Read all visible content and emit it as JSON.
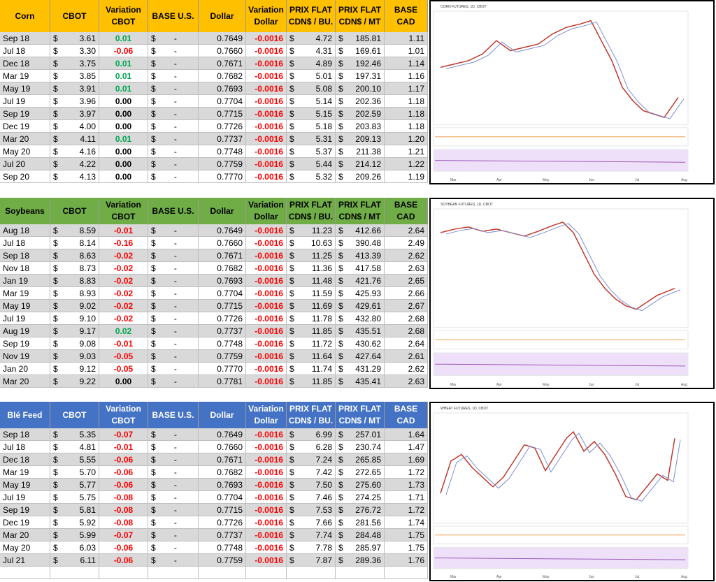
{
  "currency": "$",
  "dash": "-",
  "header": [
    [
      "CBOT"
    ],
    [
      "Variation",
      "CBOT"
    ],
    [
      "BASE U.S."
    ],
    [
      "Dollar"
    ],
    [
      "Variation",
      "Dollar"
    ],
    [
      "PRIX FLAT",
      "CDN$ / BU."
    ],
    [
      "PRIX FLAT",
      "CDN$ / MT"
    ],
    [
      "BASE CAD"
    ]
  ],
  "months": [
    "Mar",
    "Apr",
    "May",
    "Jun",
    "Jul",
    "Aug"
  ],
  "sections": [
    {
      "name": "Corn",
      "chart_title": "CORN FUTURES, 1D, CBOT",
      "rows": [
        [
          "Sep 18",
          "3.61",
          "0.01",
          "0.7649",
          "-0.0016",
          "4.72",
          "185.81",
          "1.11"
        ],
        [
          "Jul 18",
          "3.30",
          "-0.06",
          "0.7660",
          "-0.0016",
          "4.31",
          "169.61",
          "1.01"
        ],
        [
          "Dec 18",
          "3.75",
          "0.01",
          "0.7671",
          "-0.0016",
          "4.89",
          "192.46",
          "1.14"
        ],
        [
          "Mar 19",
          "3.85",
          "0.01",
          "0.7682",
          "-0.0016",
          "5.01",
          "197.31",
          "1.16"
        ],
        [
          "May 19",
          "3.91",
          "0.01",
          "0.7693",
          "-0.0016",
          "5.08",
          "200.10",
          "1.17"
        ],
        [
          "Jul 19",
          "3.96",
          "0.00",
          "0.7704",
          "-0.0016",
          "5.14",
          "202.36",
          "1.18"
        ],
        [
          "Sep 19",
          "3.97",
          "0.00",
          "0.7715",
          "-0.0016",
          "5.15",
          "202.59",
          "1.18"
        ],
        [
          "Dec 19",
          "4.00",
          "0.00",
          "0.7726",
          "-0.0016",
          "5.18",
          "203.83",
          "1.18"
        ],
        [
          "Mar 20",
          "4.11",
          "0.01",
          "0.7737",
          "-0.0016",
          "5.31",
          "209.13",
          "1.20"
        ],
        [
          "May 20",
          "4.16",
          "0.00",
          "0.7748",
          "-0.0016",
          "5.37",
          "211.38",
          "1.21"
        ],
        [
          "Jul 20",
          "4.22",
          "0.00",
          "0.7759",
          "-0.0016",
          "5.44",
          "214.12",
          "1.22"
        ],
        [
          "Sep 20",
          "4.13",
          "0.00",
          "0.7770",
          "-0.0016",
          "5.32",
          "209.26",
          "1.19"
        ]
      ]
    },
    {
      "name": "Soybeans",
      "chart_title": "SOYBEAN FUTURES, 1D, CBOT",
      "rows": [
        [
          "Aug 18",
          "8.59",
          "-0.01",
          "0.7649",
          "-0.0016",
          "11.23",
          "412.66",
          "2.64"
        ],
        [
          "Jul 18",
          "8.14",
          "-0.16",
          "0.7660",
          "-0.0016",
          "10.63",
          "390.48",
          "2.49"
        ],
        [
          "Sep 18",
          "8.63",
          "-0.02",
          "0.7671",
          "-0.0016",
          "11.25",
          "413.39",
          "2.62"
        ],
        [
          "Nov 18",
          "8.73",
          "-0.02",
          "0.7682",
          "-0.0016",
          "11.36",
          "417.58",
          "2.63"
        ],
        [
          "Jan 19",
          "8.83",
          "-0.02",
          "0.7693",
          "-0.0016",
          "11.48",
          "421.76",
          "2.65"
        ],
        [
          "Mar 19",
          "8.93",
          "-0.02",
          "0.7704",
          "-0.0016",
          "11.59",
          "425.93",
          "2.66"
        ],
        [
          "May 19",
          "9.02",
          "-0.02",
          "0.7715",
          "-0.0016",
          "11.69",
          "429.61",
          "2.67"
        ],
        [
          "Jul 19",
          "9.10",
          "-0.02",
          "0.7726",
          "-0.0016",
          "11.78",
          "432.80",
          "2.68"
        ],
        [
          "Aug 19",
          "9.17",
          "0.02",
          "0.7737",
          "-0.0016",
          "11.85",
          "435.51",
          "2.68"
        ],
        [
          "Sep 19",
          "9.08",
          "-0.01",
          "0.7748",
          "-0.0016",
          "11.72",
          "430.62",
          "2.64"
        ],
        [
          "Nov 19",
          "9.03",
          "-0.05",
          "0.7759",
          "-0.0016",
          "11.64",
          "427.64",
          "2.61"
        ],
        [
          "Jan 20",
          "9.12",
          "-0.05",
          "0.7770",
          "-0.0016",
          "11.74",
          "431.29",
          "2.62"
        ],
        [
          "Mar 20",
          "9.22",
          "0.00",
          "0.7781",
          "-0.0016",
          "11.85",
          "435.41",
          "2.63"
        ]
      ]
    },
    {
      "name": "Blé Feed",
      "chart_title": "WHEAT FUTURES, 1D, CBOT",
      "rows": [
        [
          "Sep 18",
          "5.35",
          "-0.07",
          "0.7649",
          "-0.0016",
          "6.99",
          "257.01",
          "1.64"
        ],
        [
          "Jul 18",
          "4.81",
          "-0.01",
          "0.7660",
          "-0.0016",
          "6.28",
          "230.74",
          "1.47"
        ],
        [
          "Dec 18",
          "5.55",
          "-0.06",
          "0.7671",
          "-0.0016",
          "7.24",
          "265.85",
          "1.69"
        ],
        [
          "Mar 19",
          "5.70",
          "-0.06",
          "0.7682",
          "-0.0016",
          "7.42",
          "272.65",
          "1.72"
        ],
        [
          "May 19",
          "5.77",
          "-0.06",
          "0.7693",
          "-0.0016",
          "7.50",
          "275.60",
          "1.73"
        ],
        [
          "Jul 19",
          "5.75",
          "-0.08",
          "0.7704",
          "-0.0016",
          "7.46",
          "274.25",
          "1.71"
        ],
        [
          "Sep 19",
          "5.81",
          "-0.08",
          "0.7715",
          "-0.0016",
          "7.53",
          "276.72",
          "1.72"
        ],
        [
          "Dec 19",
          "5.92",
          "-0.08",
          "0.7726",
          "-0.0016",
          "7.66",
          "281.56",
          "1.74"
        ],
        [
          "Mar 20",
          "5.99",
          "-0.07",
          "0.7737",
          "-0.0016",
          "7.74",
          "284.48",
          "1.75"
        ],
        [
          "May 20",
          "6.03",
          "-0.06",
          "0.7748",
          "-0.0016",
          "7.78",
          "285.97",
          "1.75"
        ],
        [
          "Jul 21",
          "6.11",
          "-0.06",
          "0.7759",
          "-0.0016",
          "7.87",
          "289.36",
          "1.76"
        ]
      ]
    }
  ]
}
